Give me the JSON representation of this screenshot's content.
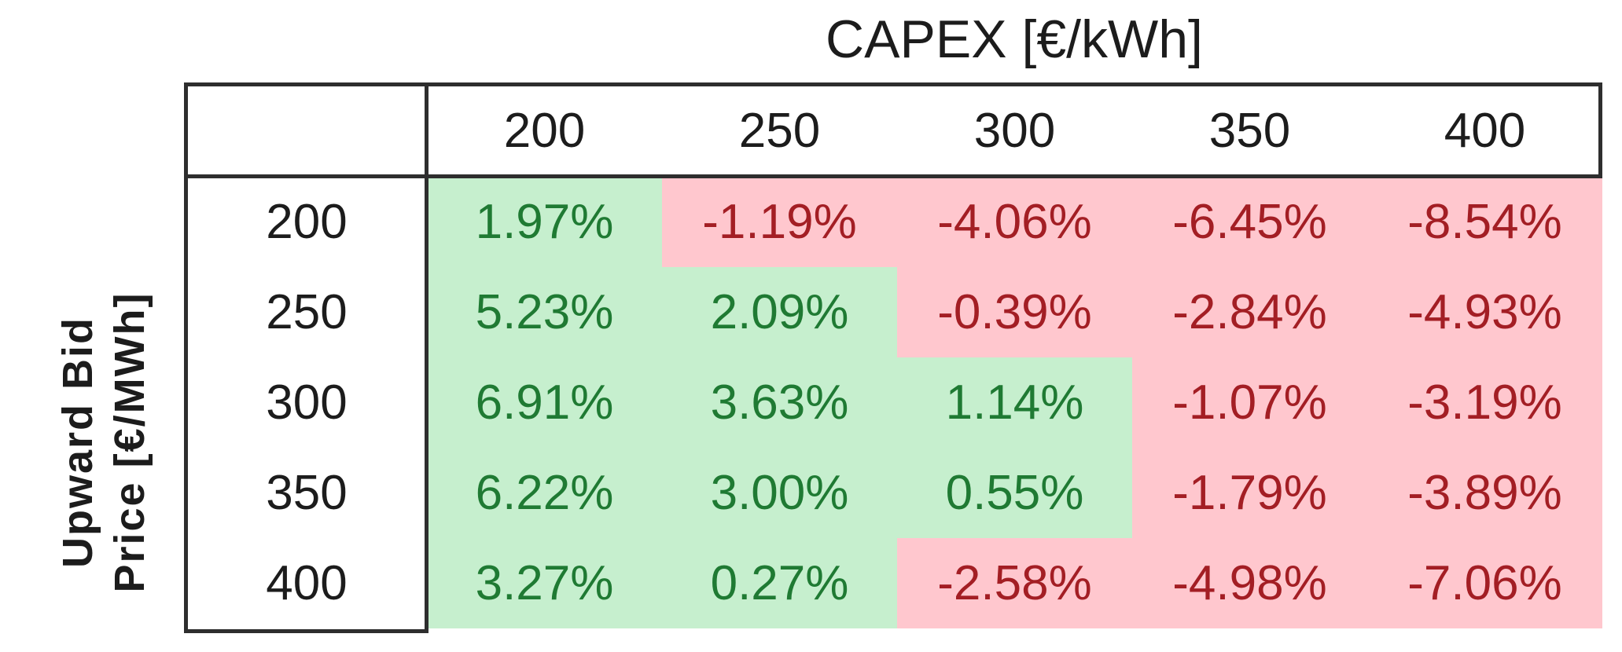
{
  "chart_data": {
    "type": "heatmap",
    "title": "CAPEX [€/kWh]",
    "ylabel_lines": [
      "Upward Bid",
      "Price [€/MWh]"
    ],
    "col_headers": [
      "200",
      "250",
      "300",
      "350",
      "400"
    ],
    "row_headers": [
      "200",
      "250",
      "300",
      "350",
      "400"
    ],
    "values": [
      [
        1.97,
        -1.19,
        -4.06,
        -6.45,
        -8.54
      ],
      [
        5.23,
        2.09,
        -0.39,
        -2.84,
        -4.93
      ],
      [
        6.91,
        3.63,
        1.14,
        -1.07,
        -3.19
      ],
      [
        6.22,
        3.0,
        0.55,
        -1.79,
        -3.89
      ],
      [
        3.27,
        0.27,
        -2.58,
        -4.98,
        -7.06
      ]
    ],
    "display": [
      [
        "1.97%",
        "-1.19%",
        "-4.06%",
        "-6.45%",
        "-8.54%"
      ],
      [
        "5.23%",
        "2.09%",
        "-0.39%",
        "-2.84%",
        "-4.93%"
      ],
      [
        "6.91%",
        "3.63%",
        "1.14%",
        "-1.07%",
        "-3.19%"
      ],
      [
        "6.22%",
        "3.00%",
        "0.55%",
        "-1.79%",
        "-3.89%"
      ],
      [
        "3.27%",
        "0.27%",
        "-2.58%",
        "-4.98%",
        "-7.06%"
      ]
    ],
    "legend_rule": "positive values green, negative values red",
    "grid": false
  },
  "colors": {
    "positive_bg": "#c6efce",
    "positive_text": "#1f7a33",
    "negative_bg": "#ffc7ce",
    "negative_text": "#a31e24",
    "border": "#2e2e2e",
    "header_text": "#1c1c1c"
  }
}
